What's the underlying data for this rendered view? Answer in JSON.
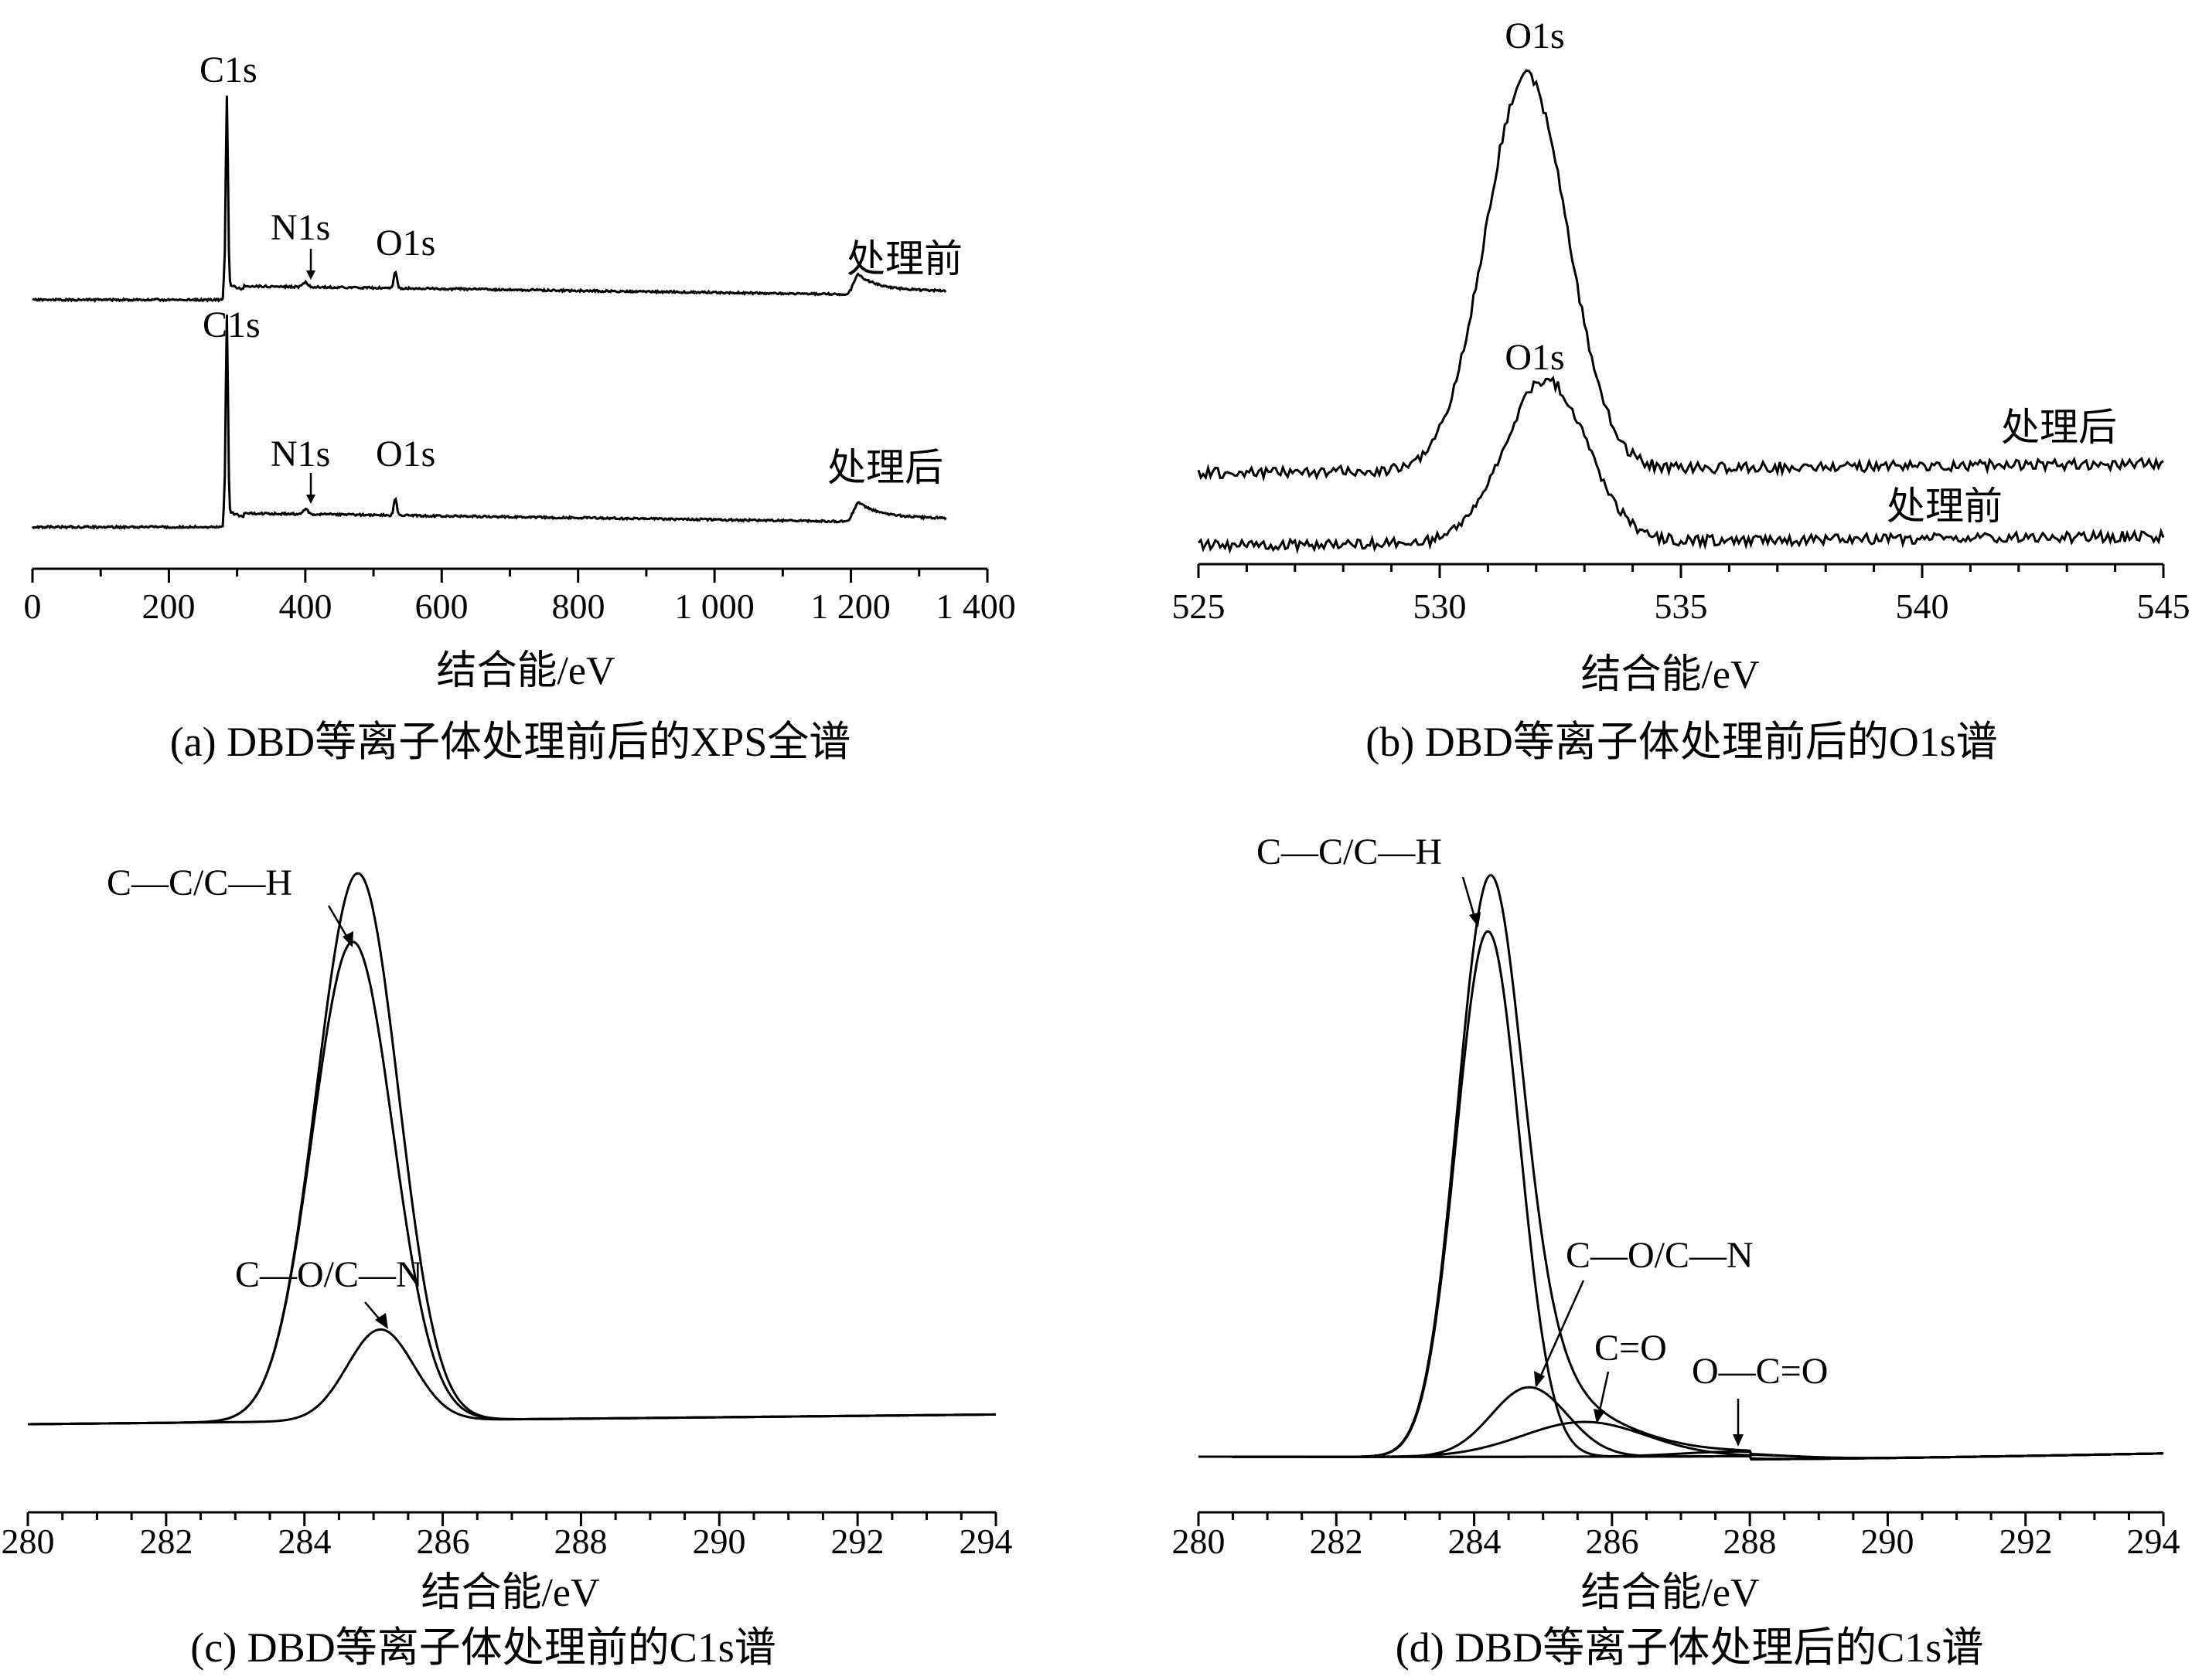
{
  "chart_data": [
    {
      "id": "a",
      "type": "line",
      "caption": "(a) DBD等离子体处理前后的XPS全谱",
      "xlabel": "结合能/eV",
      "ylabel": "",
      "xlim": [
        0,
        1400
      ],
      "xticks": [
        0,
        200,
        400,
        600,
        800,
        1000,
        1200,
        1400
      ],
      "xtick_labels": [
        "0",
        "200",
        "400",
        "600",
        "800",
        "1 000",
        "1 200",
        "1 400"
      ],
      "series": [
        {
          "name": "处理前",
          "peaks": [
            {
              "label": "C1s",
              "x": 285
            },
            {
              "label": "N1s",
              "x": 400
            },
            {
              "label": "O1s",
              "x": 532
            }
          ]
        },
        {
          "name": "处理后",
          "peaks": [
            {
              "label": "C1s",
              "x": 285
            },
            {
              "label": "N1s",
              "x": 400
            },
            {
              "label": "O1s",
              "x": 532
            }
          ]
        }
      ]
    },
    {
      "id": "b",
      "type": "line",
      "caption": "(b) DBD等离子体处理前后的O1s谱",
      "xlabel": "结合能/eV",
      "ylabel": "",
      "xlim": [
        525,
        545
      ],
      "xticks": [
        525,
        530,
        535,
        540,
        545
      ],
      "xtick_labels": [
        "525",
        "530",
        "535",
        "540",
        "545"
      ],
      "series": [
        {
          "name": "处理后",
          "peak_label": "O1s",
          "peak_x": 531.8
        },
        {
          "name": "处理前",
          "peak_label": "O1s",
          "peak_x": 532.2
        }
      ]
    },
    {
      "id": "c",
      "type": "line",
      "caption": "(c) DBD等离子体处理前的C1s谱",
      "xlabel": "结合能/eV",
      "ylabel": "",
      "xlim": [
        280,
        294
      ],
      "xticks": [
        280,
        282,
        284,
        286,
        288,
        290,
        292,
        294
      ],
      "xtick_labels": [
        "280",
        "282",
        "284",
        "286",
        "288",
        "290",
        "292",
        "294"
      ],
      "components": [
        {
          "label": "C—C/C—H",
          "center": 284.7
        },
        {
          "label": "C—O/C—N",
          "center": 285.1
        }
      ]
    },
    {
      "id": "d",
      "type": "line",
      "caption": "(d) DBD等离子体处理后的C1s谱",
      "xlabel": "结合能/eV",
      "ylabel": "",
      "xlim": [
        280,
        294
      ],
      "xticks": [
        280,
        282,
        284,
        286,
        288,
        290,
        292,
        294
      ],
      "xtick_labels": [
        "280",
        "282",
        "284",
        "286",
        "288",
        "290",
        "292",
        "294"
      ],
      "components": [
        {
          "label": "C—C/C—H",
          "center": 284.2
        },
        {
          "label": "C—O/C—N",
          "center": 284.8
        },
        {
          "label": "C=O",
          "center": 285.6
        },
        {
          "label": "O—C=O",
          "center": 287.8
        }
      ]
    }
  ]
}
